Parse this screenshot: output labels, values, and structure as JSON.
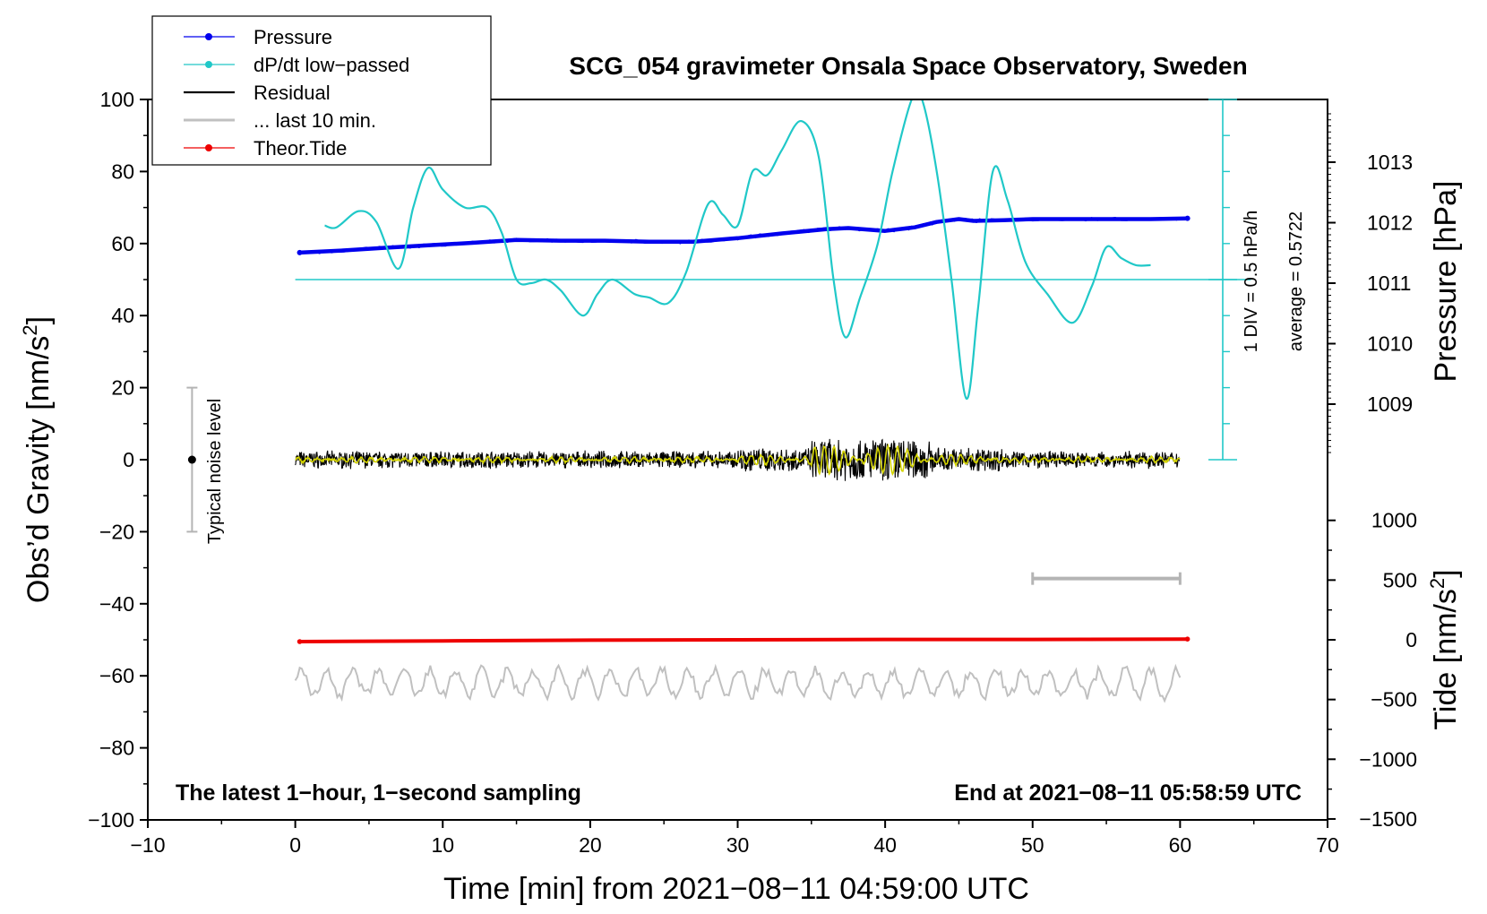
{
  "chart_data": {
    "type": "line",
    "title": "SCG_054 gravimeter Onsala Space Observatory, Sweden",
    "xlabel": "Time [min] from 2021−08−11 04:59:00 UTC",
    "ylabel": "Obs’d Gravity [nm/s",
    "ylabel_sup": "2",
    "ylabel_end": "]",
    "xlim": [
      -10,
      70
    ],
    "ylim": [
      -100,
      100
    ],
    "x_ticks": [
      -10,
      0,
      10,
      20,
      30,
      40,
      50,
      60,
      70
    ],
    "x_tick_labels": [
      "−10",
      "0",
      "10",
      "20",
      "30",
      "40",
      "50",
      "60",
      "70"
    ],
    "y_ticks": [
      -100,
      -80,
      -60,
      -40,
      -20,
      0,
      20,
      40,
      60,
      80,
      100
    ],
    "y_tick_labels": [
      "−100",
      "−80",
      "−60",
      "−40",
      "−20",
      "0",
      "20",
      "40",
      "60",
      "80",
      "100"
    ],
    "pressure_axis": {
      "label": "Pressure [hPa]",
      "ticks": [
        1009,
        1010,
        1011,
        1012,
        1013
      ],
      "tick_labels": [
        "1009",
        "1010",
        "1011",
        "1012",
        "1013"
      ]
    },
    "tide_axis": {
      "label": "Tide [nm/s",
      "label_sup": "2",
      "label_end": "]",
      "ticks": [
        1000,
        500,
        0,
        -500,
        -1000,
        -1500
      ],
      "tick_labels": [
        "1000",
        "500",
        "0",
        "−500",
        "−1000",
        "−1500"
      ]
    },
    "dpdt_scale": {
      "label1": "1 DIV = 0.5 hPa/h",
      "label2": "average = 0.5722",
      "baseline_gravity_units": 50
    },
    "legend": [
      {
        "label": "Pressure",
        "color": "#0000ee"
      },
      {
        "label": "dP/dt low−passed",
        "color": "#20c8c8"
      },
      {
        "label": "Residual",
        "color": "#000000"
      },
      {
        "label": "... last 10 min.",
        "color": "#c0c0c0"
      },
      {
        "label": "Theor.Tide",
        "color": "#ee0000"
      }
    ],
    "noise_label": "Typical noise level",
    "noise_range": [
      -20,
      20
    ],
    "bottom_left_note": "The latest 1−hour, 1−second sampling",
    "bottom_right_note": "End at 2021−08−11 05:58:59 UTC",
    "last10_bar": {
      "from": 50,
      "to": 60,
      "gravity_units": -33
    },
    "series": [
      {
        "name": "Pressure",
        "color": "#0000ee",
        "axis": "gravity_units",
        "x": [
          0.3,
          3,
          6,
          9,
          12,
          15,
          18,
          21,
          24,
          27,
          30,
          33,
          36,
          37.5,
          40,
          42,
          43.5,
          45,
          46,
          48,
          50,
          54,
          58,
          60.5
        ],
        "values": [
          57.5,
          58.0,
          58.8,
          59.5,
          60.2,
          61.0,
          60.8,
          60.8,
          60.5,
          60.5,
          61.5,
          62.8,
          64.0,
          64.3,
          63.5,
          64.5,
          66.0,
          66.8,
          66.3,
          66.5,
          66.8,
          66.8,
          66.8,
          67.0
        ]
      },
      {
        "name": "dP/dt low-passed",
        "color": "#20c8c8",
        "axis": "gravity_units",
        "x": [
          2,
          2.8,
          4.3,
          5.5,
          7,
          8,
          9,
          10,
          11.5,
          13,
          14,
          15,
          16,
          17,
          18,
          19.5,
          20.5,
          21.5,
          23,
          24,
          25.3,
          26.5,
          28,
          29,
          30,
          31,
          32,
          33,
          34.3,
          35.5,
          36.5,
          37.3,
          38.3,
          39.5,
          40.5,
          41.8,
          42.5,
          43.5,
          44.5,
          45.5,
          46.3,
          47.3,
          48.3,
          49.5,
          51,
          52.7,
          54,
          55,
          56,
          57,
          58
        ],
        "values": [
          65,
          64.5,
          69,
          66,
          53,
          70,
          81,
          75,
          70,
          70,
          63,
          50,
          49,
          50,
          47,
          40,
          46,
          50,
          46,
          45,
          43.5,
          52,
          71,
          68,
          65,
          80,
          79,
          86,
          94,
          84,
          50,
          34,
          45,
          60,
          80,
          100,
          100,
          80,
          50,
          17,
          42,
          80,
          72,
          55,
          46,
          38,
          48,
          59,
          56,
          54,
          54
        ]
      },
      {
        "name": "Theor.Tide",
        "color": "#ee0000",
        "axis": "gravity_units",
        "x": [
          0.3,
          10,
          20,
          30,
          40,
          50,
          60.5
        ],
        "values": [
          -50.5,
          -50.3,
          -50.1,
          -50.0,
          -49.9,
          -49.9,
          -49.8
        ]
      }
    ]
  }
}
